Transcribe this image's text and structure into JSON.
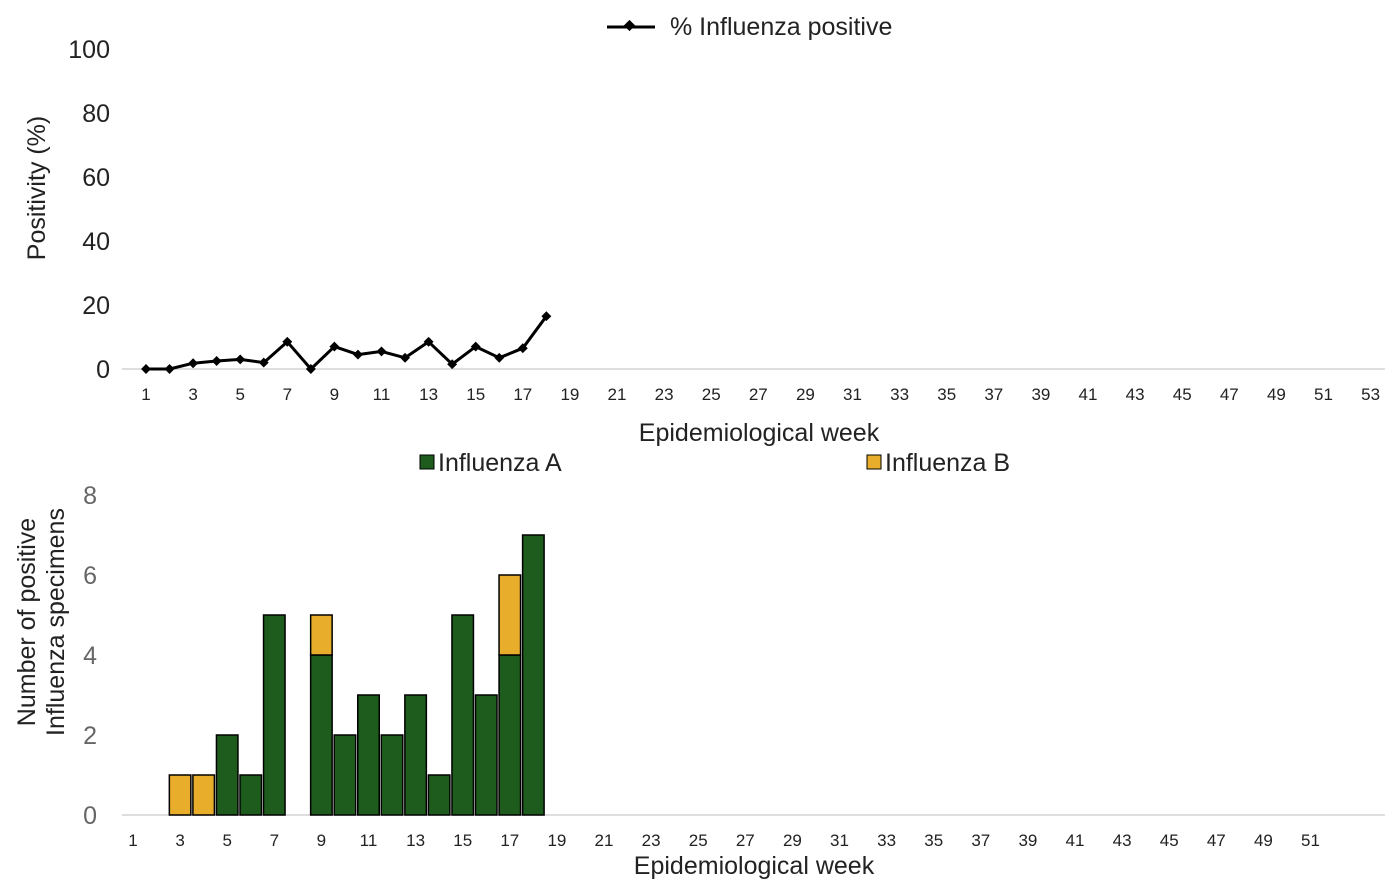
{
  "chart_data": [
    {
      "type": "line",
      "legend": {
        "label": "% Influenza positive",
        "position": "top-center"
      },
      "ylabel": "Positivity (%)",
      "xlabel": "Epidemiological week",
      "ylim": [
        0,
        100
      ],
      "yticks": [
        "0",
        "20",
        "40",
        "60",
        "80",
        "100"
      ],
      "xticks": [
        "1",
        "3",
        "5",
        "7",
        "9",
        "11",
        "13",
        "15",
        "17",
        "19",
        "21",
        "23",
        "25",
        "27",
        "29",
        "31",
        "33",
        "35",
        "37",
        "39",
        "41",
        "43",
        "45",
        "47",
        "49",
        "51",
        "53"
      ],
      "xlim": [
        1,
        53
      ],
      "series": [
        {
          "name": "% Influenza positive",
          "color": "#000000",
          "x": [
            1,
            2,
            3,
            4,
            5,
            6,
            7,
            8,
            9,
            10,
            11,
            12,
            13,
            14,
            15,
            16,
            17,
            18
          ],
          "y": [
            0,
            0,
            1.8,
            2.5,
            3,
            2,
            8.5,
            0,
            7,
            4.5,
            5.5,
            3.5,
            8.5,
            1.5,
            7,
            3.5,
            6.5,
            16.5
          ]
        }
      ]
    },
    {
      "type": "bar",
      "stacked": true,
      "ylabel": "Number of positive Influenza specimens",
      "ylabel_lines": [
        "Number of positive",
        "Influenza specimens"
      ],
      "xlabel": "Epidemiological week",
      "ylim": [
        0,
        8
      ],
      "yticks": [
        "0",
        "2",
        "4",
        "6",
        "8"
      ],
      "xticks": [
        "1",
        "3",
        "5",
        "7",
        "9",
        "11",
        "13",
        "15",
        "17",
        "19",
        "21",
        "23",
        "25",
        "27",
        "29",
        "31",
        "33",
        "35",
        "37",
        "39",
        "41",
        "43",
        "45",
        "47",
        "49",
        "51"
      ],
      "categories": [
        1,
        2,
        3,
        4,
        5,
        6,
        7,
        8,
        9,
        10,
        11,
        12,
        13,
        14,
        15,
        16,
        17,
        18
      ],
      "legend_position": "top",
      "series": [
        {
          "name": "Influenza A",
          "color": "#1e5c1e",
          "values": [
            0,
            0,
            0,
            0,
            2,
            1,
            5,
            0,
            4,
            2,
            3,
            2,
            3,
            1,
            5,
            3,
            4,
            7
          ]
        },
        {
          "name": "Influenza B",
          "color": "#e8ad2a",
          "values": [
            0,
            0,
            1,
            1,
            0,
            0,
            0,
            0,
            1,
            0,
            0,
            0,
            0,
            0,
            0,
            0,
            2,
            0
          ]
        }
      ]
    }
  ]
}
